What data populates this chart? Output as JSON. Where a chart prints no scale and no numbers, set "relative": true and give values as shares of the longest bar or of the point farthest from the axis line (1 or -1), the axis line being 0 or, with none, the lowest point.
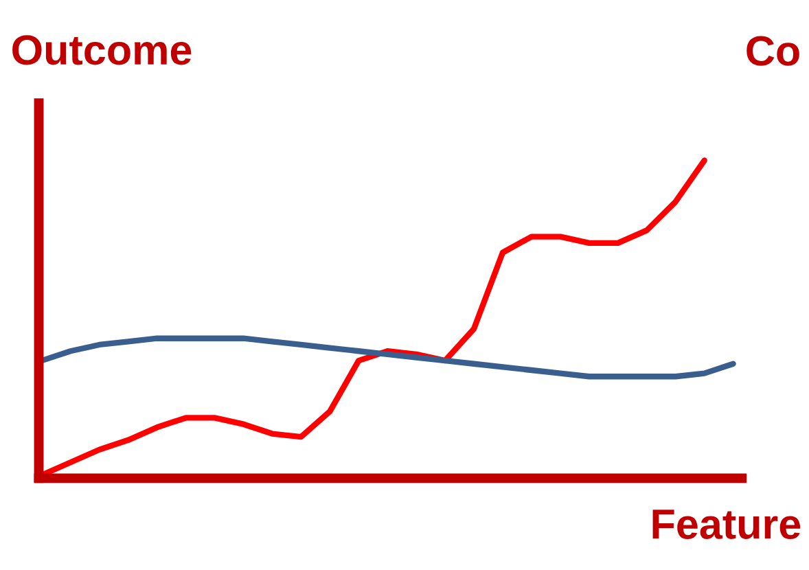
{
  "chart_data": {
    "type": "line",
    "relative": true,
    "ylabel": "Outcome",
    "xlabel": "Feature",
    "annotations": [
      "Co"
    ],
    "categories": [
      null,
      null,
      null,
      null,
      null,
      null,
      null,
      null,
      null,
      null,
      null,
      null,
      null,
      null,
      null,
      null,
      null,
      null,
      null,
      null,
      null,
      null,
      null,
      null,
      null
    ],
    "series": [
      {
        "color": "#ff0000",
        "values": [
          0.01,
          0.05,
          0.09,
          0.12,
          0.16,
          0.19,
          0.19,
          0.17,
          0.14,
          0.13,
          0.21,
          0.37,
          0.4,
          0.39,
          0.37,
          0.47,
          0.71,
          0.76,
          0.76,
          0.74,
          0.74,
          0.78,
          0.87,
          1.0,
          null
        ]
      },
      {
        "color": "#3a5f8f",
        "values": [
          0.37,
          0.4,
          0.42,
          0.43,
          0.44,
          0.44,
          0.44,
          0.44,
          0.43,
          0.42,
          0.41,
          0.4,
          0.39,
          0.38,
          0.37,
          0.36,
          0.35,
          0.34,
          0.33,
          0.32,
          0.32,
          0.32,
          0.32,
          0.33,
          0.36
        ]
      }
    ],
    "grid": false,
    "legend": false,
    "marker": "none",
    "line_style": "solid"
  }
}
